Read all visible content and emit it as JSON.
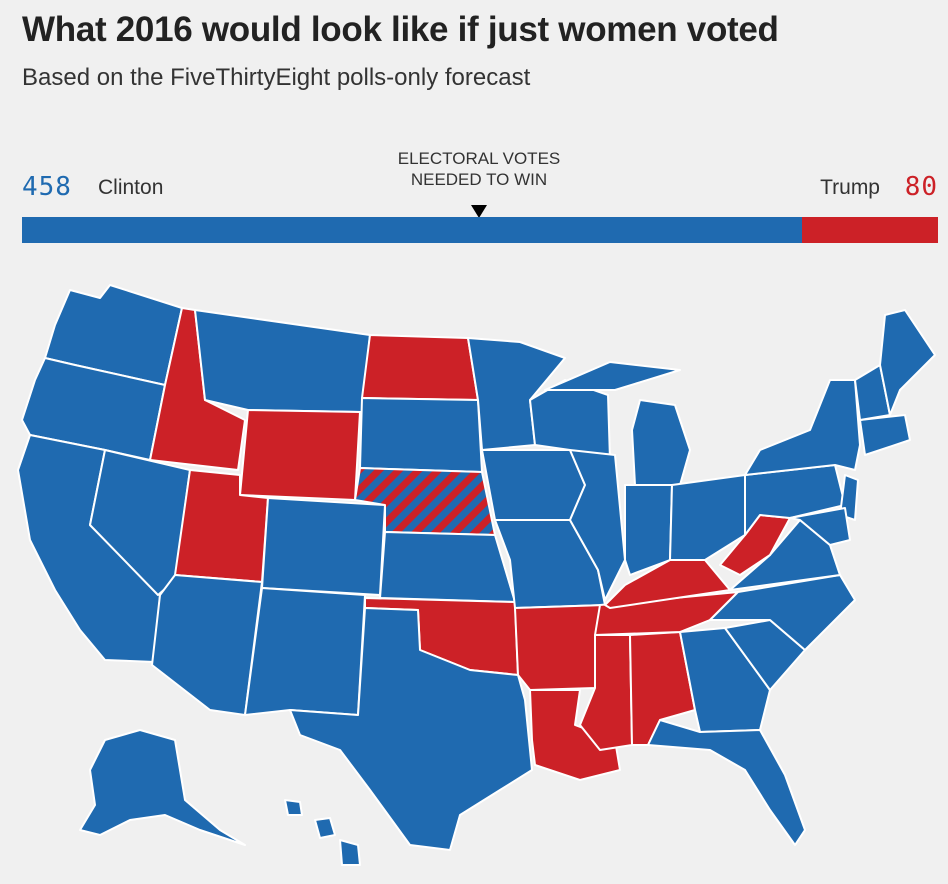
{
  "title": "What 2016 would look like if just women voted",
  "subtitle": "Based on the FiveThirtyEight polls-only forecast",
  "electoral": {
    "clinton_votes": "458",
    "clinton_label": "Clinton",
    "trump_votes": "80",
    "trump_label": "Trump",
    "needed_line1": "ELECTORAL VOTES",
    "needed_line2": "NEEDED TO WIN",
    "clinton_share": 0.8513,
    "needed_share": 0.5
  },
  "colors": {
    "clinton": "#1f6ab0",
    "trump": "#cc2127",
    "background": "#f0f0f0",
    "border": "#ffffff"
  },
  "map": {
    "legend_note": "",
    "trump_states": [
      "ID",
      "WY",
      "ND",
      "UT",
      "OK",
      "AR",
      "LA",
      "MS",
      "AL",
      "TN",
      "KY",
      "WV"
    ],
    "split_states": [
      "NE"
    ]
  }
}
